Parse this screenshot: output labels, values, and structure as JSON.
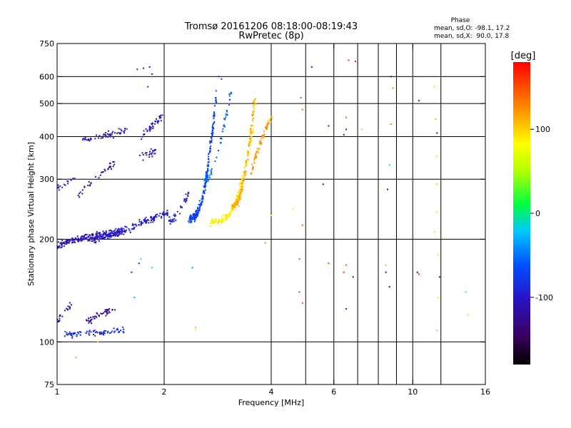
{
  "chart_data": {
    "type": "scatter",
    "title": "Tromsø 20161206 08:18:00-08:19:43",
    "subtitle": "RwPretec (8p)",
    "xlabel": "Frequency [MHz]",
    "ylabel": "Stationary phase Virtual Height [km]",
    "x_scale": "log2",
    "y_scale": "log",
    "xlim": [
      1,
      16
    ],
    "ylim": [
      75,
      750
    ],
    "x_ticks": [
      1,
      2,
      4,
      6,
      10,
      16
    ],
    "x_tick_labels": [
      "1",
      "2",
      "4",
      "6",
      "10",
      "16"
    ],
    "x_gridlines": [
      2,
      4,
      5,
      6,
      7,
      8,
      9,
      10,
      12
    ],
    "y_ticks": [
      75,
      100,
      200,
      300,
      400,
      500,
      600,
      750
    ],
    "y_tick_labels": [
      "75",
      "100",
      "200",
      "300",
      "400",
      "500",
      "600",
      "750"
    ],
    "y_gridlines": [
      100,
      200,
      300,
      400,
      500,
      600
    ],
    "grid": true,
    "stats": {
      "heading": "Phase",
      "line_o": "mean, sd,O: -98.1, 17.2",
      "line_x": "mean, sd,X:  90.0, 17.8"
    },
    "colorbar": {
      "label": "[deg]",
      "range": [
        -180,
        180
      ],
      "ticks": [
        100,
        0,
        -100
      ],
      "tick_labels": [
        "100",
        "0",
        "-100"
      ]
    },
    "traces": [
      {
        "x_range": [
          1.0,
          1.55
        ],
        "h_start": 190,
        "h_end": 210,
        "curve": 0.6,
        "phase": -110,
        "spread": 14,
        "n": 200
      },
      {
        "x_range": [
          1.25,
          2.05
        ],
        "h_start": 200,
        "h_end": 240,
        "curve": 1.3,
        "phase": -95,
        "spread": 16,
        "n": 170
      },
      {
        "x_range": [
          2.05,
          2.35
        ],
        "h_start": 225,
        "h_end": 275,
        "curve": 1.8,
        "phase": -90,
        "spread": 12,
        "n": 40
      },
      {
        "x_range": [
          2.35,
          2.8
        ],
        "h_start": 230,
        "h_end": 520,
        "curve": 3.0,
        "phase": -70,
        "spread": 20,
        "n": 220
      },
      {
        "x_range": [
          2.6,
          3.1
        ],
        "h_start": 300,
        "h_end": 560,
        "curve": 2.0,
        "phase": -55,
        "spread": 22,
        "n": 60
      },
      {
        "x_range": [
          2.7,
          3.55
        ],
        "h_start": 225,
        "h_end": 420,
        "curve": 3.4,
        "phase": 90,
        "spread": 14,
        "n": 170
      },
      {
        "x_range": [
          3.1,
          3.6
        ],
        "h_start": 250,
        "h_end": 520,
        "curve": 2.6,
        "phase": 115,
        "spread": 20,
        "n": 150
      },
      {
        "x_range": [
          3.5,
          4.0
        ],
        "h_start": 310,
        "h_end": 460,
        "curve": 1.0,
        "phase": 120,
        "spread": 22,
        "n": 70
      },
      {
        "x_range": [
          1.18,
          1.6
        ],
        "h_start": 390,
        "h_end": 415,
        "curve": 1.0,
        "phase": -105,
        "spread": 16,
        "n": 55
      },
      {
        "x_range": [
          1.72,
          1.98
        ],
        "h_start": 400,
        "h_end": 460,
        "curve": 1.0,
        "phase": -100,
        "spread": 14,
        "n": 40
      },
      {
        "x_range": [
          1.15,
          1.45
        ],
        "h_start": 270,
        "h_end": 335,
        "curve": 1.0,
        "phase": -120,
        "spread": 16,
        "n": 35
      },
      {
        "x_range": [
          1.7,
          1.92
        ],
        "h_start": 345,
        "h_end": 365,
        "curve": 1.0,
        "phase": -105,
        "spread": 14,
        "n": 22
      },
      {
        "x_range": [
          1.0,
          1.12
        ],
        "h_start": 280,
        "h_end": 300,
        "curve": 1.0,
        "phase": -95,
        "spread": 14,
        "n": 15
      },
      {
        "x_range": [
          1.0,
          1.1
        ],
        "h_start": 115,
        "h_end": 130,
        "curve": 1.0,
        "phase": -115,
        "spread": 14,
        "n": 22
      },
      {
        "x_range": [
          1.05,
          1.55
        ],
        "h_start": 105,
        "h_end": 108,
        "curve": 1.0,
        "phase": -85,
        "spread": 18,
        "n": 80
      },
      {
        "x_range": [
          1.2,
          1.45
        ],
        "h_start": 115,
        "h_end": 125,
        "curve": 1.0,
        "phase": -125,
        "spread": 18,
        "n": 45
      }
    ],
    "points": [
      [
        1.68,
        630,
        -95
      ],
      [
        1.75,
        635,
        -100
      ],
      [
        1.82,
        640,
        -110
      ],
      [
        1.85,
        610,
        -105
      ],
      [
        1.8,
        560,
        -95
      ],
      [
        2.85,
        600,
        -80
      ],
      [
        2.9,
        590,
        -70
      ],
      [
        2.8,
        545,
        -60
      ],
      [
        4.85,
        520,
        150
      ],
      [
        4.9,
        480,
        140
      ],
      [
        5.2,
        640,
        -110
      ],
      [
        5.8,
        430,
        -90
      ],
      [
        6.4,
        405,
        -95
      ],
      [
        6.5,
        420,
        -100
      ],
      [
        6.5,
        455,
        140
      ],
      [
        6.6,
        670,
        160
      ],
      [
        6.9,
        665,
        170
      ],
      [
        7.2,
        420,
        40
      ],
      [
        8.7,
        600,
        -120
      ],
      [
        8.8,
        555,
        130
      ],
      [
        8.7,
        435,
        130
      ],
      [
        8.6,
        330,
        -20
      ],
      [
        8.5,
        280,
        -110
      ],
      [
        10.4,
        510,
        -110
      ],
      [
        11.5,
        560,
        100
      ],
      [
        11.6,
        450,
        110
      ],
      [
        11.7,
        410,
        -110
      ],
      [
        11.7,
        350,
        100
      ],
      [
        11.7,
        290,
        100
      ],
      [
        11.7,
        240,
        100
      ],
      [
        11.5,
        210,
        100
      ],
      [
        11.8,
        180,
        100
      ],
      [
        4.6,
        245,
        90
      ],
      [
        4.9,
        220,
        140
      ],
      [
        5.6,
        290,
        -110
      ],
      [
        2.45,
        110,
        110
      ],
      [
        2.45,
        108,
        90
      ],
      [
        2.4,
        165,
        -40
      ],
      [
        1.62,
        160,
        -100
      ],
      [
        1.7,
        170,
        -90
      ],
      [
        1.85,
        165,
        -10
      ],
      [
        1.65,
        135,
        -30
      ],
      [
        1.72,
        175,
        20
      ],
      [
        3.85,
        195,
        130
      ],
      [
        4.0,
        235,
        80
      ],
      [
        4.8,
        175,
        150
      ],
      [
        4.8,
        140,
        160
      ],
      [
        4.9,
        130,
        150
      ],
      [
        5.8,
        170,
        150
      ],
      [
        6.4,
        160,
        160
      ],
      [
        6.5,
        168,
        150
      ],
      [
        6.5,
        125,
        -90
      ],
      [
        6.8,
        155,
        -100
      ],
      [
        8.4,
        168,
        110
      ],
      [
        8.6,
        145,
        -130
      ],
      [
        8.4,
        160,
        -110
      ],
      [
        10.3,
        160,
        -150
      ],
      [
        10.4,
        158,
        170
      ],
      [
        11.9,
        155,
        -120
      ],
      [
        11.8,
        135,
        90
      ],
      [
        11.7,
        108,
        110
      ],
      [
        14.1,
        140,
        20
      ],
      [
        14.3,
        120,
        100
      ],
      [
        1.13,
        90,
        120
      ],
      [
        1.3,
        100,
        100
      ]
    ]
  }
}
